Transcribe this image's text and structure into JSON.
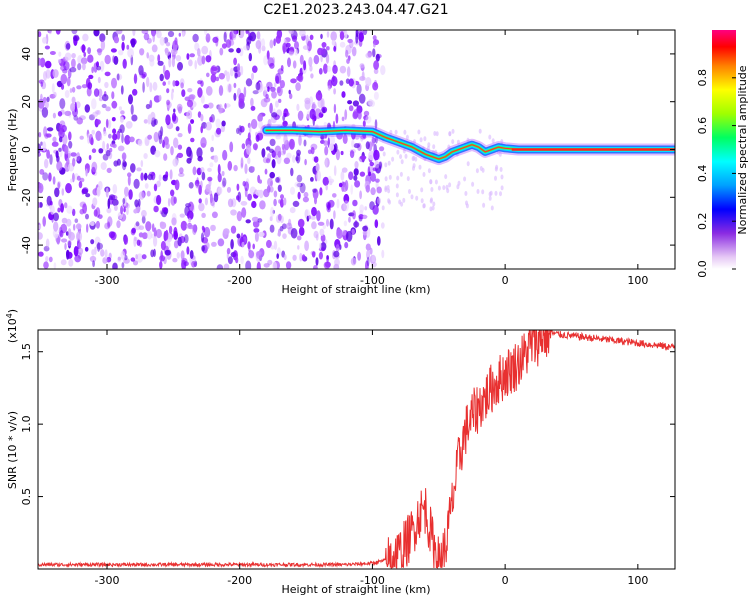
{
  "title": "C2E1.2023.243.04.47.G21",
  "chart_data": [
    {
      "type": "heatmap",
      "name": "spectrogram",
      "xlabel": "Height of straight line (km)",
      "ylabel": "Frequency (Hz)",
      "xlim": [
        -352,
        128
      ],
      "ylim": [
        -50,
        50
      ],
      "x_ticks": [
        -300,
        -200,
        -100,
        0,
        100
      ],
      "y_ticks": [
        -40,
        -20,
        0,
        20,
        40
      ],
      "colorbar": {
        "label": "Normalized spectral amplitude",
        "range": [
          0,
          1
        ],
        "ticks": [
          0.0,
          0.2,
          0.4,
          0.6,
          0.8
        ]
      },
      "noise_region_x": [
        -352,
        -92
      ],
      "ridge": [
        [
          -180,
          8
        ],
        [
          -160,
          8
        ],
        [
          -140,
          7.5
        ],
        [
          -120,
          8
        ],
        [
          -100,
          7.5
        ],
        [
          -90,
          5
        ],
        [
          -80,
          3
        ],
        [
          -70,
          1
        ],
        [
          -60,
          -2
        ],
        [
          -50,
          -4
        ],
        [
          -45,
          -3
        ],
        [
          -40,
          -1
        ],
        [
          -35,
          0
        ],
        [
          -30,
          1
        ],
        [
          -25,
          2
        ],
        [
          -20,
          1
        ],
        [
          -15,
          -1
        ],
        [
          -10,
          0
        ],
        [
          -5,
          1
        ],
        [
          0,
          0.5
        ],
        [
          10,
          0
        ],
        [
          50,
          0
        ],
        [
          128,
          0
        ]
      ]
    },
    {
      "type": "line",
      "name": "snr",
      "xlabel": "Height of straight line (km)",
      "ylabel": "SNR (10 * v/v)",
      "y_scale_label": "(x10",
      "y_scale_exponent": "4",
      "y_scale_close": ")",
      "xlim": [
        -352,
        128
      ],
      "ylim": [
        0,
        1.65
      ],
      "x_ticks": [
        -300,
        -200,
        -100,
        0,
        100
      ],
      "y_ticks": [
        0.5,
        1.0,
        1.5
      ],
      "color": "#e83030",
      "x": [
        -352,
        -300,
        -200,
        -120,
        -100,
        -90,
        -80,
        -70,
        -65,
        -60,
        -55,
        -50,
        -45,
        -40,
        -35,
        -30,
        -25,
        -20,
        -15,
        -10,
        -5,
        0,
        5,
        10,
        15,
        20,
        25,
        30,
        35,
        40,
        60,
        80,
        100,
        128
      ],
      "y": [
        0.03,
        0.03,
        0.03,
        0.03,
        0.04,
        0.06,
        0.1,
        0.25,
        0.38,
        0.42,
        0.2,
        0.05,
        0.15,
        0.45,
        0.75,
        0.95,
        1.05,
        1.12,
        1.18,
        1.25,
        1.3,
        1.35,
        1.38,
        1.42,
        1.48,
        1.55,
        1.58,
        1.62,
        1.63,
        1.62,
        1.6,
        1.58,
        1.56,
        1.53
      ]
    }
  ]
}
